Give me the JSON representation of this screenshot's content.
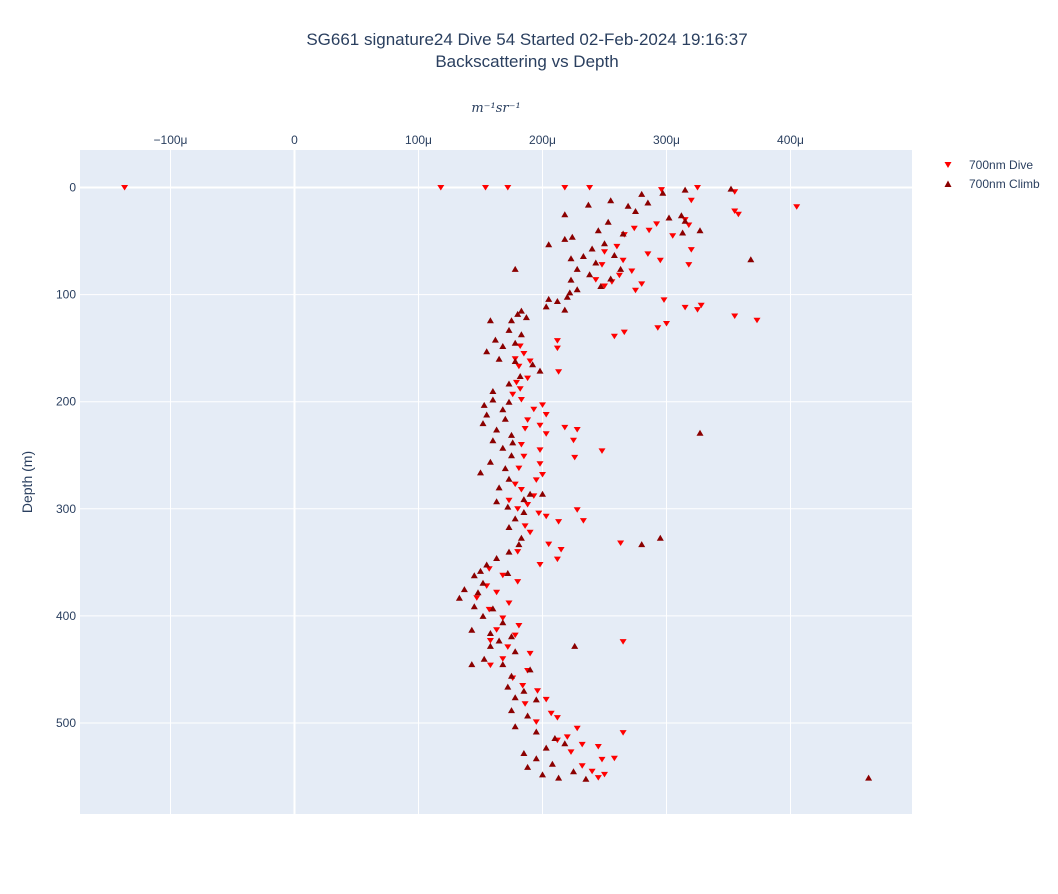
{
  "chart_data": {
    "type": "scatter",
    "title_line1": "SG661 signature24 Dive 54 Started 02-Feb-2024 19:16:37",
    "title_line2": "Backscattering vs Depth",
    "xlabel": "m⁻¹sr⁻¹",
    "ylabel": "Depth (m)",
    "x_axis_position": "top",
    "y_reversed": true,
    "grid": true,
    "legend_position": "top-right",
    "xlim": [
      -0.000173,
      0.000498
    ],
    "ylim": [
      585,
      -35
    ],
    "x_ticks": [
      -0.0001,
      0,
      0.0001,
      0.0002,
      0.0003,
      0.0004
    ],
    "x_tick_labels": [
      "−100μ",
      "0",
      "100μ",
      "200μ",
      "300μ",
      "400μ"
    ],
    "y_ticks": [
      0,
      100,
      200,
      300,
      400,
      500
    ],
    "y_tick_labels": [
      "0",
      "100",
      "200",
      "300",
      "400",
      "500"
    ],
    "colors": {
      "dive": "#ff0000",
      "climb": "#8b0000",
      "plot_bg": "#e5ecf6",
      "grid": "#ffffff",
      "text": "#2a3f5f"
    },
    "series": [
      {
        "name": "700nm Dive",
        "marker": "triangle-down",
        "color": "#ff0000",
        "points": [
          [
            -0.000137,
            0
          ],
          [
            0.000118,
            0
          ],
          [
            0.000154,
            0
          ],
          [
            0.000172,
            0
          ],
          [
            0.000218,
            0
          ],
          [
            0.000238,
            0
          ],
          [
            0.000296,
            2
          ],
          [
            0.000325,
            0
          ],
          [
            0.000355,
            4
          ],
          [
            0.000405,
            18
          ],
          [
            0.000355,
            22
          ],
          [
            0.000358,
            25
          ],
          [
            0.00032,
            12
          ],
          [
            0.000315,
            30
          ],
          [
            0.000318,
            35
          ],
          [
            0.000292,
            34
          ],
          [
            0.000305,
            45
          ],
          [
            0.00032,
            58
          ],
          [
            0.000318,
            72
          ],
          [
            0.000286,
            40
          ],
          [
            0.000274,
            38
          ],
          [
            0.000266,
            44
          ],
          [
            0.00026,
            55
          ],
          [
            0.00025,
            60
          ],
          [
            0.000265,
            68
          ],
          [
            0.000248,
            72
          ],
          [
            0.000285,
            62
          ],
          [
            0.000295,
            68
          ],
          [
            0.000272,
            78
          ],
          [
            0.000262,
            82
          ],
          [
            0.00028,
            90
          ],
          [
            0.000256,
            88
          ],
          [
            0.00025,
            92
          ],
          [
            0.000243,
            86
          ],
          [
            0.000275,
            96
          ],
          [
            0.000298,
            105
          ],
          [
            0.000315,
            112
          ],
          [
            0.000325,
            114
          ],
          [
            0.000328,
            110
          ],
          [
            0.000355,
            120
          ],
          [
            0.000373,
            124
          ],
          [
            0.0003,
            127
          ],
          [
            0.000293,
            131
          ],
          [
            0.000266,
            135
          ],
          [
            0.000258,
            139
          ],
          [
            0.000212,
            143
          ],
          [
            0.000212,
            150
          ],
          [
            0.000182,
            148
          ],
          [
            0.000185,
            155
          ],
          [
            0.000178,
            160
          ],
          [
            0.00019,
            162
          ],
          [
            0.000181,
            167
          ],
          [
            0.000213,
            172
          ],
          [
            0.000188,
            178
          ],
          [
            0.000179,
            182
          ],
          [
            0.000182,
            188
          ],
          [
            0.000176,
            193
          ],
          [
            0.000183,
            198
          ],
          [
            0.0002,
            203
          ],
          [
            0.000193,
            207
          ],
          [
            0.000203,
            212
          ],
          [
            0.000188,
            217
          ],
          [
            0.000198,
            222
          ],
          [
            0.000186,
            225
          ],
          [
            0.000218,
            224
          ],
          [
            0.000228,
            226
          ],
          [
            0.000203,
            230
          ],
          [
            0.000225,
            236
          ],
          [
            0.000183,
            240
          ],
          [
            0.000198,
            245
          ],
          [
            0.000248,
            246
          ],
          [
            0.000185,
            251
          ],
          [
            0.000226,
            252
          ],
          [
            0.000198,
            258
          ],
          [
            0.000181,
            262
          ],
          [
            0.0002,
            268
          ],
          [
            0.000195,
            273
          ],
          [
            0.000178,
            277
          ],
          [
            0.000183,
            282
          ],
          [
            0.000193,
            288
          ],
          [
            0.000173,
            292
          ],
          [
            0.000188,
            296
          ],
          [
            0.00018,
            300
          ],
          [
            0.000197,
            304
          ],
          [
            0.000203,
            307
          ],
          [
            0.000228,
            301
          ],
          [
            0.000233,
            311
          ],
          [
            0.000213,
            312
          ],
          [
            0.000186,
            316
          ],
          [
            0.00019,
            322
          ],
          [
            0.000263,
            332
          ],
          [
            0.000205,
            333
          ],
          [
            0.000215,
            338
          ],
          [
            0.00018,
            340
          ],
          [
            0.000212,
            347
          ],
          [
            0.000198,
            352
          ],
          [
            0.000157,
            356
          ],
          [
            0.000168,
            362
          ],
          [
            0.00018,
            368
          ],
          [
            0.000155,
            372
          ],
          [
            0.000163,
            378
          ],
          [
            0.000147,
            383
          ],
          [
            0.000173,
            388
          ],
          [
            0.000157,
            394
          ],
          [
            0.000168,
            402
          ],
          [
            0.000181,
            409
          ],
          [
            0.000163,
            413
          ],
          [
            0.000178,
            418
          ],
          [
            0.000158,
            423
          ],
          [
            0.000265,
            424
          ],
          [
            0.000172,
            429
          ],
          [
            0.00019,
            435
          ],
          [
            0.000168,
            440
          ],
          [
            0.000158,
            446
          ],
          [
            0.000188,
            451
          ],
          [
            0.000176,
            458
          ],
          [
            0.000184,
            465
          ],
          [
            0.000196,
            470
          ],
          [
            0.000203,
            478
          ],
          [
            0.000186,
            482
          ],
          [
            0.000207,
            491
          ],
          [
            0.000212,
            495
          ],
          [
            0.000195,
            499
          ],
          [
            0.000228,
            505
          ],
          [
            0.00022,
            513
          ],
          [
            0.000265,
            509
          ],
          [
            0.000212,
            516
          ],
          [
            0.000232,
            520
          ],
          [
            0.000245,
            522
          ],
          [
            0.000223,
            527
          ],
          [
            0.000248,
            534
          ],
          [
            0.000258,
            533
          ],
          [
            0.000232,
            540
          ],
          [
            0.00024,
            545
          ],
          [
            0.00025,
            548
          ],
          [
            0.000245,
            551
          ]
        ]
      },
      {
        "name": "700nm Climb",
        "marker": "triangle-up",
        "color": "#8b0000",
        "points": [
          [
            0.000352,
            1
          ],
          [
            0.000315,
            2
          ],
          [
            0.000297,
            5
          ],
          [
            0.00028,
            6
          ],
          [
            0.000255,
            12
          ],
          [
            0.000237,
            16
          ],
          [
            0.000269,
            17
          ],
          [
            0.000285,
            14
          ],
          [
            0.000275,
            22
          ],
          [
            0.000312,
            26
          ],
          [
            0.000315,
            31
          ],
          [
            0.000302,
            28
          ],
          [
            0.000327,
            40
          ],
          [
            0.000313,
            42
          ],
          [
            0.000253,
            32
          ],
          [
            0.000245,
            40
          ],
          [
            0.000265,
            43
          ],
          [
            0.000224,
            46
          ],
          [
            0.000218,
            48
          ],
          [
            0.000205,
            53
          ],
          [
            0.000218,
            25
          ],
          [
            0.00025,
            52
          ],
          [
            0.00024,
            57
          ],
          [
            0.000233,
            64
          ],
          [
            0.000258,
            63
          ],
          [
            0.000223,
            66
          ],
          [
            0.000243,
            70
          ],
          [
            0.000228,
            76
          ],
          [
            0.000263,
            76
          ],
          [
            0.000238,
            81
          ],
          [
            0.000223,
            86
          ],
          [
            0.000255,
            85
          ],
          [
            0.000247,
            92
          ],
          [
            0.000228,
            95
          ],
          [
            0.000222,
            98
          ],
          [
            0.00022,
            102
          ],
          [
            0.000205,
            104
          ],
          [
            0.000212,
            106
          ],
          [
            0.000203,
            111
          ],
          [
            0.000218,
            114
          ],
          [
            0.000183,
            115
          ],
          [
            0.00018,
            118
          ],
          [
            0.000187,
            121
          ],
          [
            0.000175,
            124
          ],
          [
            0.000158,
            124
          ],
          [
            0.000173,
            133
          ],
          [
            0.000183,
            137
          ],
          [
            0.000162,
            142
          ],
          [
            0.000178,
            145
          ],
          [
            0.000168,
            148
          ],
          [
            0.000155,
            153
          ],
          [
            0.000165,
            160
          ],
          [
            0.000178,
            162
          ],
          [
            0.000192,
            165
          ],
          [
            0.000198,
            171
          ],
          [
            0.000182,
            176
          ],
          [
            0.000173,
            183
          ],
          [
            0.00016,
            190
          ],
          [
            0.000173,
            200
          ],
          [
            0.00016,
            198
          ],
          [
            0.000153,
            203
          ],
          [
            0.000168,
            207
          ],
          [
            0.000155,
            212
          ],
          [
            0.00017,
            216
          ],
          [
            0.000152,
            220
          ],
          [
            0.000163,
            226
          ],
          [
            0.000175,
            231
          ],
          [
            0.00016,
            236
          ],
          [
            0.000176,
            238
          ],
          [
            0.000168,
            243
          ],
          [
            0.000175,
            250
          ],
          [
            0.000158,
            256
          ],
          [
            0.00017,
            262
          ],
          [
            0.00015,
            266
          ],
          [
            0.000173,
            272
          ],
          [
            0.000165,
            280
          ],
          [
            0.00019,
            286
          ],
          [
            0.000185,
            291
          ],
          [
            0.000163,
            293
          ],
          [
            0.0002,
            286
          ],
          [
            0.000172,
            298
          ],
          [
            0.000185,
            303
          ],
          [
            0.000178,
            309
          ],
          [
            0.000173,
            317
          ],
          [
            0.000183,
            327
          ],
          [
            0.000181,
            333
          ],
          [
            0.000163,
            346
          ],
          [
            0.000173,
            340
          ],
          [
            0.000155,
            352
          ],
          [
            0.00015,
            358
          ],
          [
            0.000145,
            362
          ],
          [
            0.000172,
            360
          ],
          [
            0.000152,
            369
          ],
          [
            0.000137,
            375
          ],
          [
            0.000148,
            378
          ],
          [
            0.000133,
            383
          ],
          [
            0.000145,
            391
          ],
          [
            0.00016,
            393
          ],
          [
            0.000152,
            400
          ],
          [
            0.000168,
            406
          ],
          [
            0.000143,
            413
          ],
          [
            0.000158,
            416
          ],
          [
            0.000175,
            419
          ],
          [
            0.000165,
            423
          ],
          [
            0.000158,
            428
          ],
          [
            0.000178,
            433
          ],
          [
            0.000153,
            440
          ],
          [
            0.000143,
            445
          ],
          [
            0.000168,
            445
          ],
          [
            0.00019,
            450
          ],
          [
            0.000175,
            456
          ],
          [
            0.000172,
            466
          ],
          [
            0.000185,
            470
          ],
          [
            0.000178,
            476
          ],
          [
            0.000195,
            478
          ],
          [
            0.000175,
            488
          ],
          [
            0.000188,
            493
          ],
          [
            0.000178,
            503
          ],
          [
            0.000195,
            508
          ],
          [
            0.00021,
            514
          ],
          [
            0.000218,
            519
          ],
          [
            0.000203,
            523
          ],
          [
            0.000185,
            528
          ],
          [
            0.000195,
            533
          ],
          [
            0.000208,
            538
          ],
          [
            0.000188,
            541
          ],
          [
            0.0002,
            548
          ],
          [
            0.000213,
            551
          ],
          [
            0.000225,
            545
          ],
          [
            0.000235,
            552
          ],
          [
            0.000226,
            428
          ],
          [
            0.000327,
            229
          ],
          [
            0.000368,
            67
          ],
          [
            0.00028,
            333
          ],
          [
            0.000463,
            551
          ],
          [
            0.000178,
            76
          ],
          [
            0.000295,
            327
          ]
        ]
      }
    ]
  }
}
